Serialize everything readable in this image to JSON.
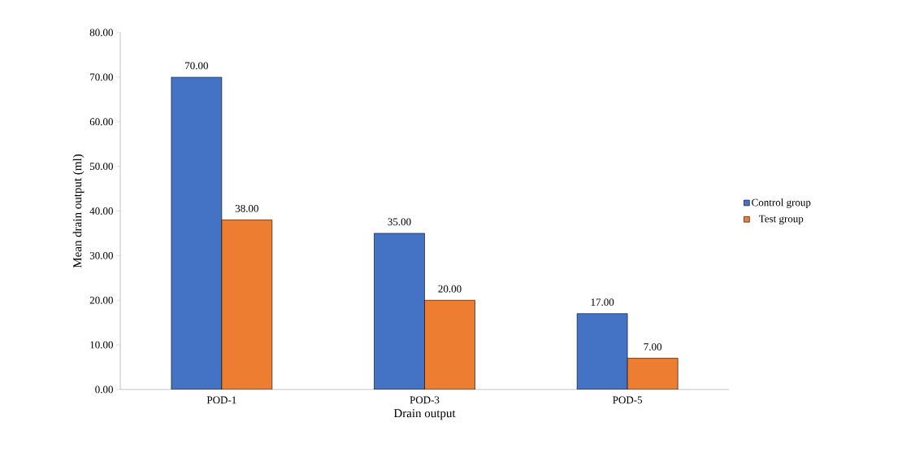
{
  "chart_data": {
    "type": "bar",
    "xlabel": "Drain output",
    "ylabel": "Mean drain output (ml)",
    "categories": [
      "POD-1",
      "POD-3",
      "POD-5"
    ],
    "series": [
      {
        "name": "Control group",
        "color": "#4472c4",
        "values": [
          70,
          35,
          17
        ],
        "value_labels": [
          "70.00",
          "35.00",
          "17.00"
        ]
      },
      {
        "name": "Test group",
        "color": "#ed7d31",
        "values": [
          38,
          20,
          7
        ],
        "value_labels": [
          "38.00",
          "20.00",
          "7.00"
        ]
      }
    ],
    "ylim": [
      0,
      80
    ],
    "yticks": [
      {
        "value": 0,
        "label": "0.00"
      },
      {
        "value": 10,
        "label": "10.00"
      },
      {
        "value": 20,
        "label": "20.00"
      },
      {
        "value": 30,
        "label": "30.00"
      },
      {
        "value": 40,
        "label": "40.00"
      },
      {
        "value": 50,
        "label": "50.00"
      },
      {
        "value": 60,
        "label": "60.00"
      },
      {
        "value": 70,
        "label": "70.00"
      },
      {
        "value": 80,
        "label": "80.00"
      }
    ],
    "grid": false,
    "legend": "right"
  }
}
